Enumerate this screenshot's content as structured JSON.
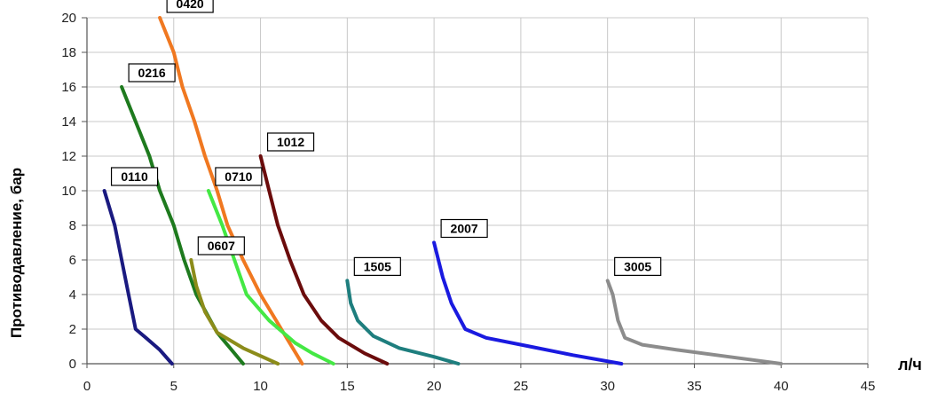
{
  "chart_data": {
    "type": "line",
    "title": "",
    "xlabel": "",
    "x_unit_label": "л/ч",
    "ylabel": "Противодавление, бар",
    "xlim": [
      0,
      45
    ],
    "ylim": [
      0,
      20
    ],
    "x_ticks": [
      "0",
      "5",
      "10",
      "15",
      "20",
      "25",
      "30",
      "35",
      "40",
      "45"
    ],
    "y_ticks": [
      "0",
      "2",
      "4",
      "6",
      "8",
      "10",
      "12",
      "14",
      "16",
      "18",
      "20"
    ],
    "grid": true,
    "legend": "inline labels",
    "series": [
      {
        "name": "0110",
        "color": "#1a1a80",
        "x": [
          1.0,
          1.6,
          2.0,
          2.4,
          2.8,
          3.4,
          4.2,
          4.9
        ],
        "y": [
          10,
          8,
          6,
          4,
          2,
          1.5,
          0.8,
          0
        ]
      },
      {
        "name": "0216",
        "color": "#1e7a1e",
        "x": [
          2.0,
          2.8,
          3.6,
          4.2,
          5.0,
          5.6,
          6.3,
          7.5,
          9.0
        ],
        "y": [
          16,
          14,
          12,
          10,
          8,
          6,
          4,
          1.8,
          0
        ]
      },
      {
        "name": "0420",
        "color": "#f07820",
        "x": [
          4.2,
          5.0,
          5.5,
          6.2,
          6.8,
          7.5,
          8.1,
          9.0,
          10.0,
          11.2,
          12.4
        ],
        "y": [
          20,
          18,
          16,
          14,
          12,
          10,
          8,
          6,
          4,
          2,
          0
        ]
      },
      {
        "name": "0607",
        "color": "#8c8c1a",
        "x": [
          6.0,
          6.3,
          6.8,
          7.5,
          9.0,
          11.0
        ],
        "y": [
          6,
          4.5,
          3,
          1.8,
          0.9,
          0
        ]
      },
      {
        "name": "0710",
        "color": "#44e844",
        "x": [
          7.0,
          7.8,
          8.5,
          9.2,
          10.5,
          12.0,
          13.0,
          14.2
        ],
        "y": [
          10,
          8,
          6,
          4,
          2.5,
          1.2,
          0.6,
          0
        ]
      },
      {
        "name": "1012",
        "color": "#6b0c0c",
        "x": [
          10.0,
          10.5,
          11.0,
          11.7,
          12.5,
          13.5,
          14.5,
          16.0,
          17.3
        ],
        "y": [
          12,
          10,
          8,
          6,
          4,
          2.5,
          1.5,
          0.6,
          0
        ]
      },
      {
        "name": "1505",
        "color": "#1e7e7e",
        "x": [
          15.0,
          15.2,
          15.6,
          16.5,
          18.0,
          20.0,
          21.4
        ],
        "y": [
          4.8,
          3.5,
          2.5,
          1.6,
          0.9,
          0.4,
          0
        ]
      },
      {
        "name": "2007",
        "color": "#1a1ae0",
        "x": [
          20.0,
          20.5,
          21.0,
          21.8,
          23.0,
          25.5,
          28.0,
          30.8
        ],
        "y": [
          7,
          5,
          3.5,
          2.0,
          1.5,
          1.0,
          0.5,
          0
        ]
      },
      {
        "name": "3005",
        "color": "#8c8c8c",
        "x": [
          30.0,
          30.3,
          30.6,
          31.0,
          32.0,
          34.0,
          37.0,
          40.0
        ],
        "y": [
          4.8,
          4,
          2.5,
          1.5,
          1.1,
          0.8,
          0.4,
          0
        ]
      }
    ]
  }
}
